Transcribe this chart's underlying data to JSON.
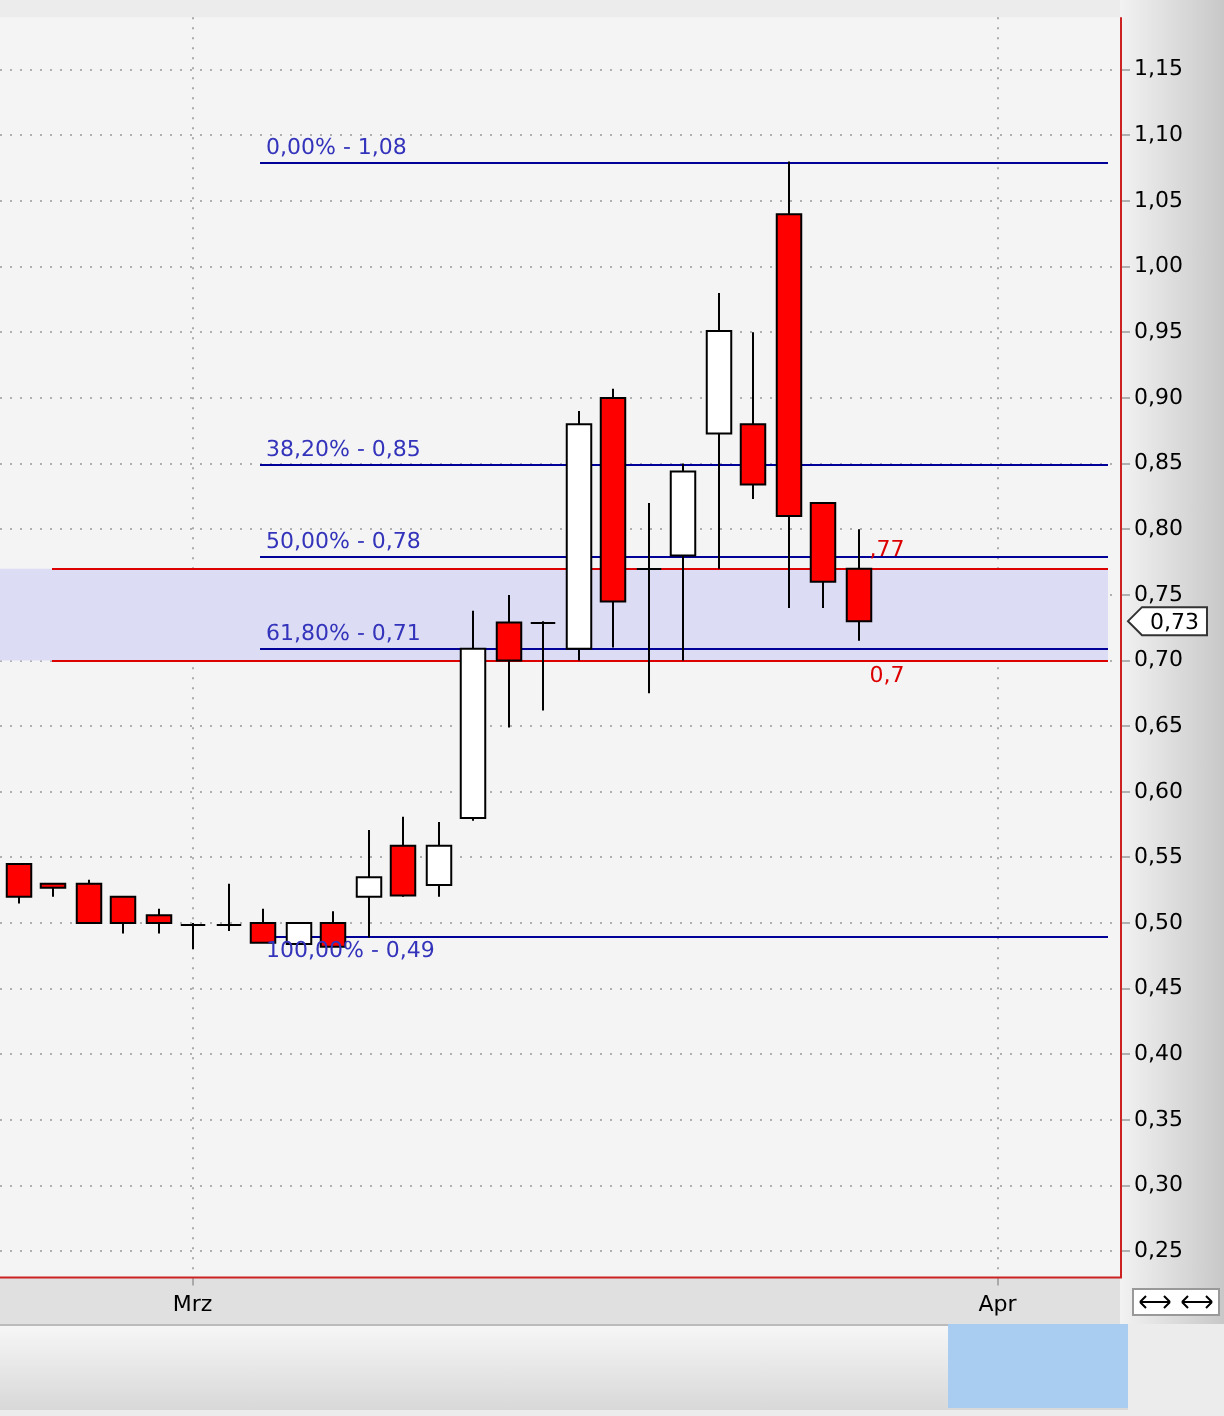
{
  "chart_data": {
    "type": "candlestick",
    "categories": [
      null,
      null,
      null,
      null,
      null,
      "Mrz",
      null,
      null,
      null,
      null,
      null,
      null,
      null,
      null,
      null,
      null,
      null,
      null,
      null,
      null,
      null,
      null,
      null,
      null,
      null,
      null,
      null,
      null,
      "Apr",
      null,
      null,
      null
    ],
    "ohlc": [
      [
        0.545,
        0.545,
        0.515,
        0.52
      ],
      [
        0.53,
        0.53,
        0.52,
        0.527
      ],
      [
        0.53,
        0.533,
        0.5,
        0.5
      ],
      [
        0.52,
        0.52,
        0.492,
        0.5
      ],
      [
        0.506,
        0.511,
        0.492,
        0.5
      ],
      [
        0.5,
        0.5,
        0.48,
        0.5
      ],
      [
        0.5,
        0.53,
        0.494,
        0.5
      ],
      [
        0.5,
        0.511,
        0.485,
        0.485
      ],
      [
        0.484,
        0.5,
        0.484,
        0.5
      ],
      [
        0.5,
        0.509,
        0.482,
        0.482
      ],
      [
        0.52,
        0.571,
        0.489,
        0.535
      ],
      [
        0.559,
        0.581,
        0.52,
        0.521
      ],
      [
        0.529,
        0.577,
        0.52,
        0.559
      ],
      [
        0.58,
        0.738,
        0.578,
        0.709
      ],
      [
        0.729,
        0.75,
        0.649,
        0.7
      ],
      [
        0.73,
        0.73,
        0.662,
        0.73
      ],
      [
        0.709,
        0.89,
        0.7,
        0.88
      ],
      [
        0.9,
        0.907,
        0.71,
        0.745
      ],
      [
        0.77,
        0.82,
        0.675,
        0.77
      ],
      [
        0.78,
        0.85,
        0.7,
        0.844
      ],
      [
        0.873,
        0.98,
        0.77,
        0.951
      ],
      [
        0.88,
        0.95,
        0.823,
        0.834
      ],
      [
        1.04,
        1.08,
        0.74,
        0.81
      ],
      [
        0.82,
        0.82,
        0.74,
        0.76
      ],
      [
        0.77,
        0.8,
        0.715,
        0.73
      ],
      null,
      null,
      null,
      null,
      null,
      null,
      null
    ],
    "colors": [
      "#ff0000",
      "#ff0000",
      "#ff0000",
      "#ff0000",
      "#ff0000",
      "#000000",
      "#000000",
      "#ff0000",
      "#ffffff",
      "#ff0000",
      "#ffffff",
      "#ff0000",
      "#ffffff",
      "#ffffff",
      "#ff0000",
      "#000000",
      "#ffffff",
      "#ff0000",
      "#000000",
      "#ffffff",
      "#ffffff",
      "#ff0000",
      "#ff0000",
      "#ff0000",
      "#ff0000",
      null,
      null,
      null,
      null,
      null,
      null,
      null
    ],
    "ylim": [
      0.23,
      1.19
    ],
    "yticks": [
      {
        "value": 0.25,
        "label": "0,25"
      },
      {
        "value": 0.3,
        "label": "0,30"
      },
      {
        "value": 0.35,
        "label": "0,35"
      },
      {
        "value": 0.4,
        "label": "0,40"
      },
      {
        "value": 0.45,
        "label": "0,45"
      },
      {
        "value": 0.5,
        "label": "0,50"
      },
      {
        "value": 0.55,
        "label": "0,55"
      },
      {
        "value": 0.6,
        "label": "0,60"
      },
      {
        "value": 0.65,
        "label": "0,65"
      },
      {
        "value": 0.7,
        "label": "0,70"
      },
      {
        "value": 0.75,
        "label": "0,75"
      },
      {
        "value": 0.8,
        "label": "0,80"
      },
      {
        "value": 0.85,
        "label": "0,85"
      },
      {
        "value": 0.9,
        "label": "0,90"
      },
      {
        "value": 0.95,
        "label": "0,95"
      },
      {
        "value": 1.0,
        "label": "1,00"
      },
      {
        "value": 1.05,
        "label": "1,05"
      },
      {
        "value": 1.1,
        "label": "1,10"
      },
      {
        "value": 1.15,
        "label": "1,15"
      }
    ],
    "grid": true,
    "ref_lines": [
      {
        "axis": "y",
        "value": 1.08,
        "color": "#000099"
      },
      {
        "axis": "y",
        "value": 0.85,
        "color": "#000099"
      },
      {
        "axis": "y",
        "value": 0.78,
        "color": "#000099"
      },
      {
        "axis": "y",
        "value": 0.71,
        "color": "#000099"
      },
      {
        "axis": "y",
        "value": 0.49,
        "color": "#000099"
      },
      {
        "axis": "y",
        "value": 0.77,
        "label": ",77",
        "color": "#dd0000"
      },
      {
        "axis": "y",
        "value": 0.7,
        "label": "0,7",
        "color": "#dd0000"
      }
    ],
    "bands": [
      {
        "axis": "y",
        "from": 0.7,
        "to": 0.77,
        "color": "#dcdcf4"
      }
    ],
    "annotations": [
      {
        "text": "0,00% - 1,08",
        "y": 1.08
      },
      {
        "text": "38,20% - 0,85",
        "y": 0.85
      },
      {
        "text": "50,00% - 0,78",
        "y": 0.78
      },
      {
        "text": "61,80% - 0,71",
        "y": 0.71
      },
      {
        "text": "100,00% - 0,49",
        "y": 0.49
      },
      "0,73"
    ]
  }
}
